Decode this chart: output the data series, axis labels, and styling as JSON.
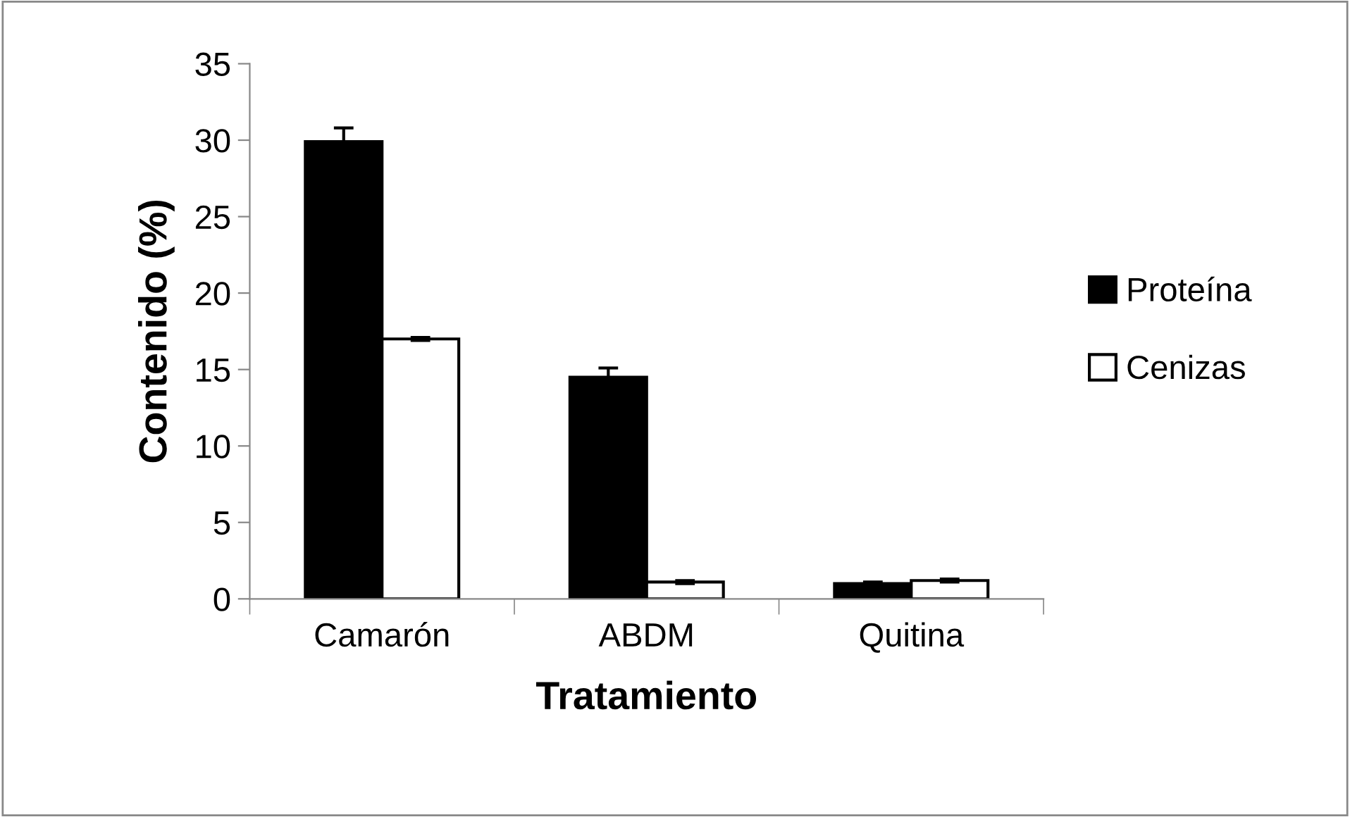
{
  "chart_data": {
    "type": "bar",
    "xlabel": "Tratamiento",
    "ylabel": "Contenido (%)",
    "categories": [
      "Camarón",
      "ABDM",
      "Quitina"
    ],
    "series": [
      {
        "name": "Proteína",
        "color": "#000000",
        "values": [
          29.9,
          14.5,
          1.0
        ],
        "errors": [
          0.9,
          0.6,
          0.1
        ]
      },
      {
        "name": "Cenizas",
        "color": "#ffffff",
        "values": [
          17.0,
          1.1,
          1.2
        ],
        "errors": [
          0.1,
          0.1,
          0.1
        ]
      }
    ],
    "ylim": [
      0,
      35
    ],
    "yticks": [
      0,
      5,
      10,
      15,
      20,
      25,
      30,
      35
    ],
    "grid": false,
    "legend": "right"
  }
}
